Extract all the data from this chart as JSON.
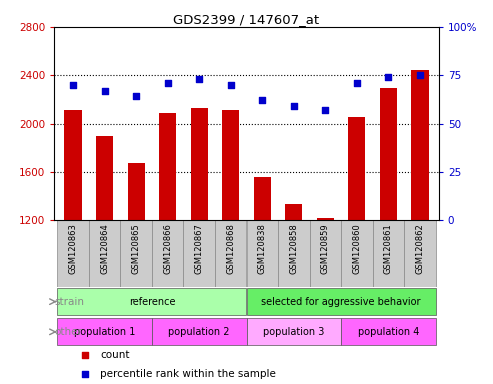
{
  "title": "GDS2399 / 147607_at",
  "samples": [
    "GSM120863",
    "GSM120864",
    "GSM120865",
    "GSM120866",
    "GSM120867",
    "GSM120868",
    "GSM120838",
    "GSM120858",
    "GSM120859",
    "GSM120860",
    "GSM120861",
    "GSM120862"
  ],
  "counts": [
    2110,
    1900,
    1670,
    2090,
    2130,
    2110,
    1560,
    1330,
    1220,
    2050,
    2290,
    2440
  ],
  "percentile": [
    70,
    67,
    64,
    71,
    73,
    70,
    62,
    59,
    57,
    71,
    74,
    75
  ],
  "ylim_left": [
    1200,
    2800
  ],
  "ylim_right": [
    0,
    100
  ],
  "yticks_left": [
    1200,
    1600,
    2000,
    2400,
    2800
  ],
  "yticks_right": [
    0,
    25,
    50,
    75,
    100
  ],
  "bar_color": "#cc0000",
  "scatter_color": "#0000cc",
  "strain_labels": [
    {
      "label": "reference",
      "start": 0,
      "end": 6,
      "color": "#aaffaa"
    },
    {
      "label": "selected for aggressive behavior",
      "start": 6,
      "end": 12,
      "color": "#66ee66"
    }
  ],
  "other_labels": [
    {
      "label": "population 1",
      "start": 0,
      "end": 3,
      "color": "#ff66ff"
    },
    {
      "label": "population 2",
      "start": 3,
      "end": 6,
      "color": "#ff66ff"
    },
    {
      "label": "population 3",
      "start": 6,
      "end": 9,
      "color": "#ffaaff"
    },
    {
      "label": "population 4",
      "start": 9,
      "end": 12,
      "color": "#ff66ff"
    }
  ],
  "strain_label": "strain",
  "other_label": "other",
  "legend_count_label": "count",
  "legend_pct_label": "percentile rank within the sample",
  "background_color": "#ffffff",
  "xtick_bg_color": "#cccccc",
  "grid_dotted_vals": [
    1600,
    2000,
    2400
  ]
}
